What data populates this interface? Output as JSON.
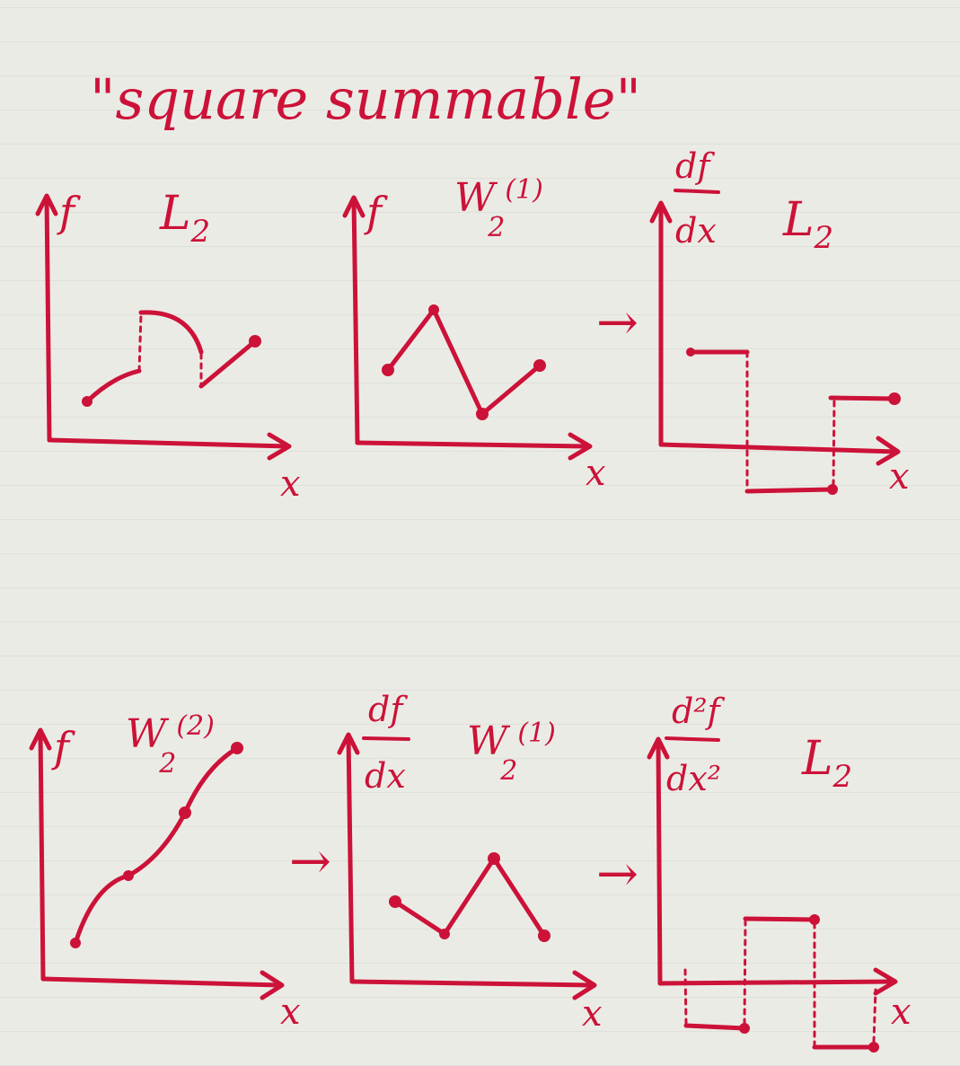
{
  "title": "\"square summable\"",
  "panels": [
    {
      "id": "top-left",
      "ylabel": "f",
      "space": "L",
      "space_sub": "2",
      "space_sup": "",
      "xlabel": "x"
    },
    {
      "id": "top-middle",
      "ylabel": "f",
      "space": "W",
      "space_sub": "2",
      "space_sup": "(1)",
      "xlabel": "x"
    },
    {
      "id": "top-right",
      "ylabel_num": "df",
      "ylabel_den": "dx",
      "space": "L",
      "space_sub": "2",
      "space_sup": "",
      "xlabel": "x"
    },
    {
      "id": "bottom-left",
      "ylabel": "f",
      "space": "W",
      "space_sub": "2",
      "space_sup": "(2)",
      "xlabel": "x"
    },
    {
      "id": "bottom-middle",
      "ylabel_num": "df",
      "ylabel_den": "dx",
      "space": "W",
      "space_sub": "2",
      "space_sup": "(1)",
      "xlabel": "x"
    },
    {
      "id": "bottom-right",
      "ylabel_num": "d²f",
      "ylabel_den": "dx²",
      "space": "L",
      "space_sub": "2",
      "space_sup": "",
      "xlabel": "x"
    }
  ],
  "arrow_symbol": "→",
  "colors": {
    "ink": "#cc1238",
    "paper": "#ebebe6"
  }
}
